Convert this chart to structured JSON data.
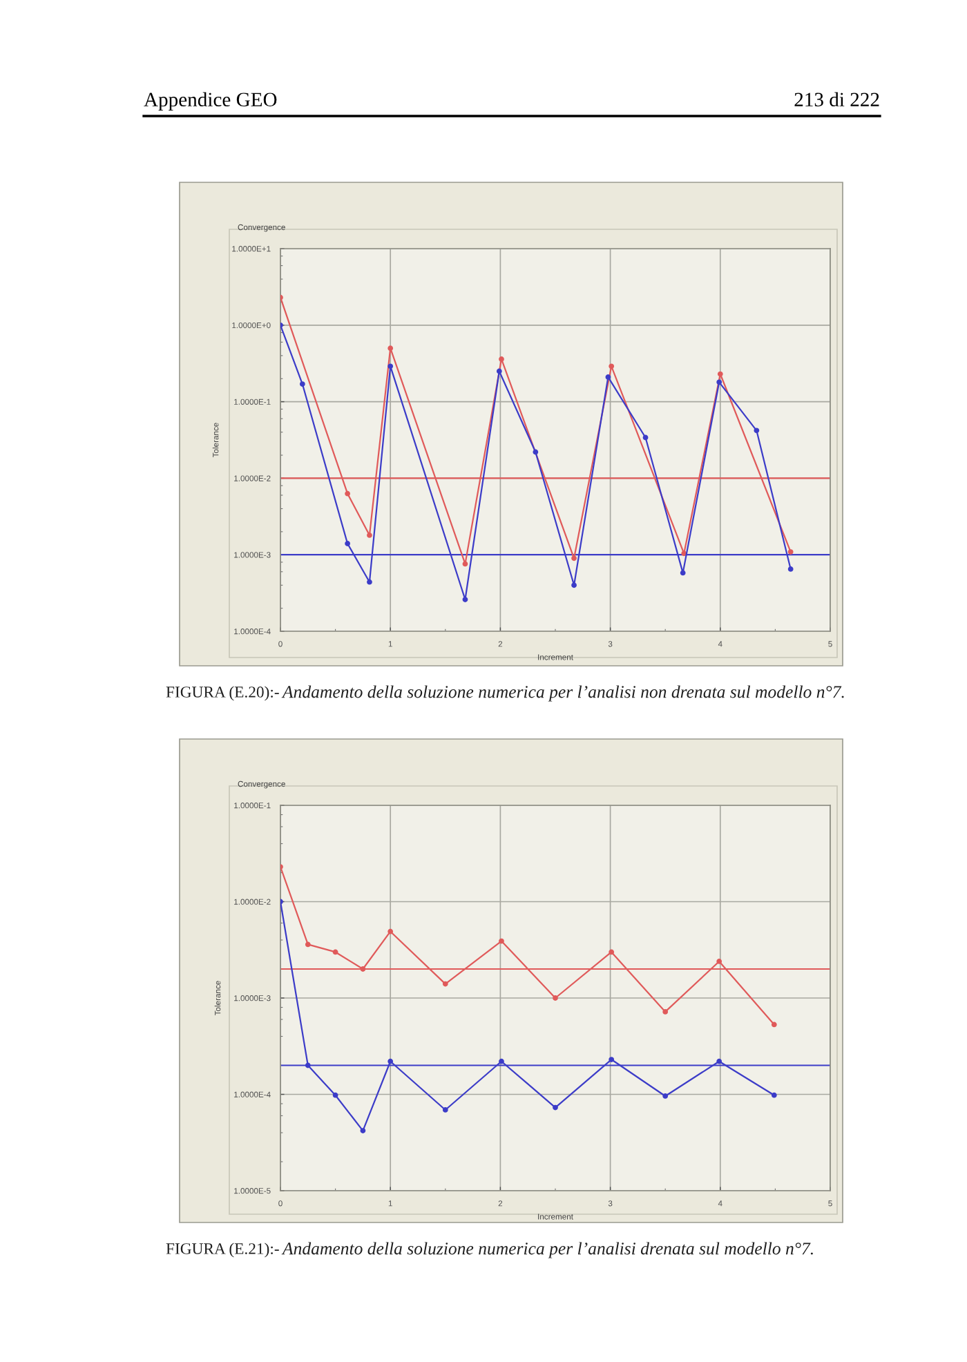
{
  "chart_data": [
    {
      "type": "line",
      "title": "Convergence",
      "xlabel": "Increment",
      "ylabel": "Tolerance",
      "log": true,
      "grid": true,
      "marker": "circle",
      "xlim": [
        0,
        5
      ],
      "xticks": [
        0,
        1,
        2,
        3,
        4,
        5
      ],
      "ylim": [
        0.0001,
        10
      ],
      "yticks": [
        {
          "value": 10,
          "label": "1.0000E+1"
        },
        {
          "value": 1,
          "label": "1.0000E+0"
        },
        {
          "value": 0.1,
          "label": "1.0000E-1"
        },
        {
          "value": 0.01,
          "label": "1.0000E-2"
        },
        {
          "value": 0.001,
          "label": "1.0000E-3"
        },
        {
          "value": 0.0001,
          "label": "1.0000E-4"
        }
      ],
      "series": [
        {
          "color": "#e05a5a",
          "x": [
            0,
            0.61,
            0.81,
            1.0,
            1.68,
            2.01,
            2.67,
            3.01,
            3.67,
            4.0,
            4.64
          ],
          "values": [
            2.3,
            0.0063,
            0.0018,
            0.5,
            0.00076,
            0.36,
            0.0009,
            0.29,
            0.00104,
            0.23,
            0.00109
          ]
        },
        {
          "color": "#3c3cc8",
          "x": [
            0,
            0.2,
            0.61,
            0.81,
            1.0,
            1.68,
            1.99,
            2.32,
            2.67,
            2.98,
            3.32,
            3.66,
            3.99,
            4.33,
            4.64
          ],
          "values": [
            1.0,
            0.17,
            0.0014,
            0.00044,
            0.29,
            0.00026,
            0.25,
            0.022,
            0.0004,
            0.21,
            0.034,
            0.00058,
            0.18,
            0.042,
            0.00065
          ]
        }
      ],
      "ref_lines": [
        {
          "axis": "y",
          "value": 0.01,
          "color": "#e05a5a"
        },
        {
          "axis": "y",
          "value": 0.001,
          "color": "#3c3cc8"
        }
      ],
      "annotations": [
        "Appendice GEO",
        "213 di 222",
        "FIGURA (E.20):-",
        "Andamento della soluzione numerica per l’analisi non drenata sul modello n°7."
      ]
    },
    {
      "type": "line",
      "title": "Convergence",
      "xlabel": "Increment",
      "ylabel": "Tolerance",
      "log": true,
      "grid": true,
      "marker": "circle",
      "xlim": [
        0,
        5
      ],
      "xticks": [
        0,
        1,
        2,
        3,
        4,
        5
      ],
      "ylim": [
        1e-05,
        0.1
      ],
      "yticks": [
        {
          "value": 0.1,
          "label": "1.0000E-1"
        },
        {
          "value": 0.01,
          "label": "1.0000E-2"
        },
        {
          "value": 0.001,
          "label": "1.0000E-3"
        },
        {
          "value": 0.0001,
          "label": "1.0000E-4"
        },
        {
          "value": 1e-05,
          "label": "1.0000E-5"
        }
      ],
      "series": [
        {
          "color": "#e05a5a",
          "x": [
            0,
            0.25,
            0.5,
            0.75,
            1.0,
            1.5,
            2.01,
            2.5,
            3.01,
            3.5,
            3.99,
            4.49
          ],
          "values": [
            0.023,
            0.0036,
            0.003,
            0.002,
            0.0049,
            0.0014,
            0.0039,
            0.001,
            0.003,
            0.00072,
            0.0024,
            0.00053
          ]
        },
        {
          "color": "#3c3cc8",
          "x": [
            0,
            0.25,
            0.5,
            0.75,
            1.0,
            1.5,
            2.01,
            2.5,
            3.01,
            3.5,
            3.99,
            4.49
          ],
          "values": [
            0.01,
            0.0002,
            9.8e-05,
            4.2e-05,
            0.00022,
            6.9e-05,
            0.00022,
            7.3e-05,
            0.00023,
            9.6e-05,
            0.00022,
            9.8e-05
          ]
        }
      ],
      "ref_lines": [
        {
          "axis": "y",
          "value": 0.002,
          "color": "#e05a5a"
        },
        {
          "axis": "y",
          "value": 0.0002,
          "color": "#3c3cc8"
        }
      ],
      "annotations": [
        "FIGURA (E.21):-",
        "Andamento della soluzione numerica per l’analisi drenata sul modello n°7."
      ]
    }
  ]
}
